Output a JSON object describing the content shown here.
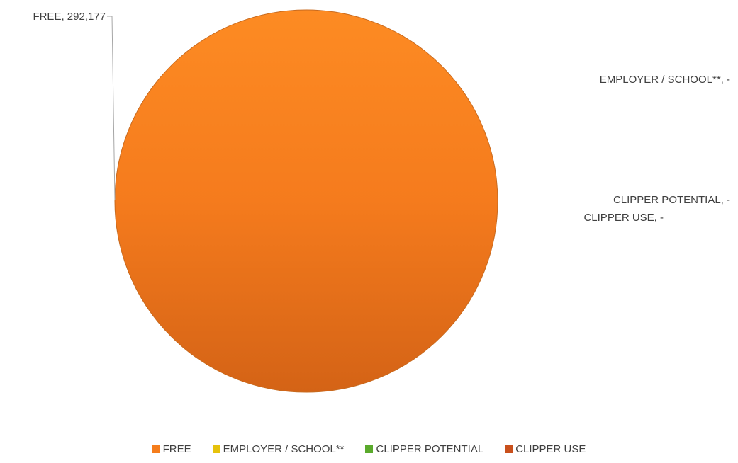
{
  "chart_data": {
    "type": "pie",
    "title": "",
    "slices": [
      {
        "label": "FREE",
        "value": 292177,
        "value_text": "292,177",
        "color": "#f57d1c"
      },
      {
        "label": "EMPLOYER / SCHOOL**",
        "value": 0,
        "value_text": "-",
        "color": "#e6c20c"
      },
      {
        "label": "CLIPPER POTENTIAL",
        "value": 0,
        "value_text": "-",
        "color": "#5aaa2c"
      },
      {
        "label": "CLIPPER USE",
        "value": 0,
        "value_text": "-",
        "color": "#c9501c"
      }
    ],
    "legend_position": "bottom"
  }
}
